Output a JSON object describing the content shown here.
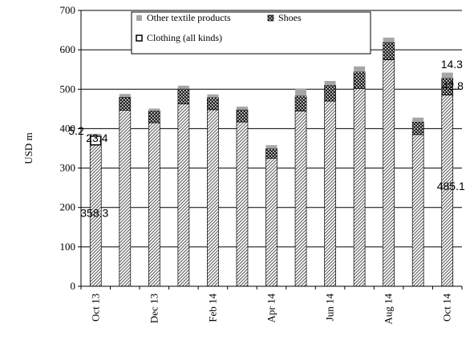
{
  "chart_data": {
    "type": "bar",
    "stacked": true,
    "ylabel": "USD m",
    "ylim": [
      0,
      700
    ],
    "yticks": [
      0,
      100,
      200,
      300,
      400,
      500,
      600,
      700
    ],
    "grid": true,
    "legend_position": "top",
    "categories": [
      "Oct 13",
      "Nov 13",
      "Dec 13",
      "Jan 14",
      "Feb 14",
      "Mar 14",
      "Apr 14",
      "May 14",
      "Jun 14",
      "Jul 14",
      "Aug 14",
      "Sep 14",
      "Oct 14"
    ],
    "x_tick_labels": [
      "Oct 13",
      "",
      "Dec 13",
      "",
      "Feb 14",
      "",
      "Apr 14",
      "",
      "Jun 14",
      "",
      "Aug 14",
      "",
      "Oct 14"
    ],
    "series": [
      {
        "name": "Clothing (all kinds)",
        "color": "#ffffff",
        "pattern": "diagonal-hatch",
        "values": [
          358.3,
          447,
          415,
          463,
          448,
          417,
          325,
          445,
          470,
          502,
          575,
          385,
          485.1
        ]
      },
      {
        "name": "Shoes",
        "color": "#333333",
        "pattern": "crosshatch",
        "values": [
          23.4,
          33,
          30,
          38,
          31,
          31,
          24,
          38,
          40,
          42,
          44,
          32,
          42.8
        ]
      },
      {
        "name": "Other textile products",
        "color": "#a6a6a6",
        "pattern": "solid",
        "values": [
          5.2,
          8,
          6,
          8,
          8,
          8,
          9,
          18,
          11,
          14,
          12,
          11,
          14.3
        ]
      }
    ],
    "data_labels": [
      {
        "text": "5.2",
        "category": "Oct 13"
      },
      {
        "text": "23.4",
        "category": "Oct 13"
      },
      {
        "text": "358.3",
        "category": "Oct 13"
      },
      {
        "text": "14.3",
        "category": "Oct 14"
      },
      {
        "text": "42.8",
        "category": "Oct 14"
      },
      {
        "text": "485.1",
        "category": "Oct 14"
      }
    ],
    "legend": [
      {
        "label": "Other textile products"
      },
      {
        "label": "Shoes"
      },
      {
        "label": "Clothing (all kinds)"
      }
    ]
  }
}
